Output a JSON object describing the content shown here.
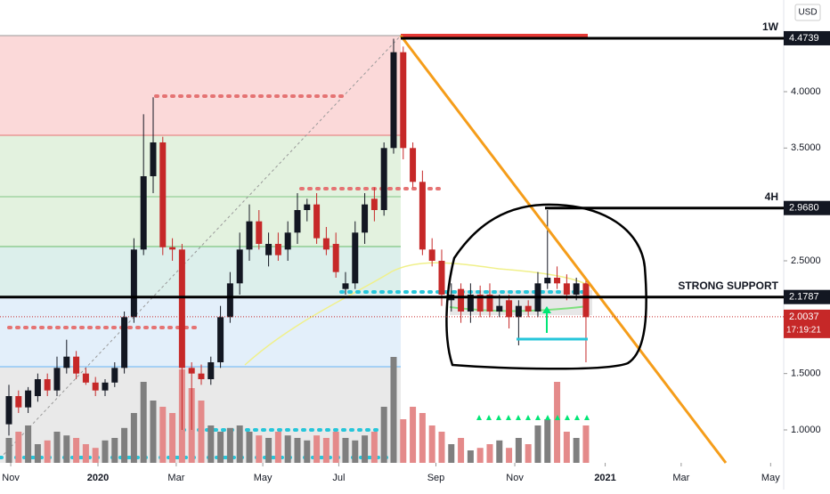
{
  "chart_data": {
    "type": "candlestick",
    "currency": "USD",
    "categories": [
      null,
      null,
      null,
      null,
      null,
      null,
      null,
      null,
      null,
      null,
      null,
      null,
      null,
      null,
      null,
      null,
      null,
      null,
      null,
      null,
      null,
      null,
      null,
      null,
      null,
      null,
      null,
      null,
      null,
      null,
      null,
      null,
      null,
      null,
      null,
      null,
      null,
      null,
      null,
      null,
      null,
      null,
      null,
      null,
      null,
      null,
      null,
      null,
      null,
      null,
      null,
      null,
      null,
      null,
      null,
      null,
      null,
      null,
      null,
      null,
      null
    ],
    "open": [
      1.05,
      1.3,
      1.2,
      1.3,
      1.45,
      1.35,
      1.55,
      1.65,
      1.5,
      1.42,
      1.35,
      1.42,
      1.55,
      2.0,
      2.6,
      3.25,
      3.55,
      2.62,
      2.6,
      1.55,
      1.5,
      1.45,
      1.6,
      2.0,
      2.3,
      2.6,
      2.85,
      2.55,
      2.65,
      2.6,
      2.75,
      2.95,
      3.0,
      2.7,
      2.65,
      2.25,
      2.3,
      2.75,
      3.05,
      2.95,
      3.5,
      4.35,
      3.5,
      3.2,
      2.6,
      2.5,
      2.15,
      2.25,
      2.05,
      2.2,
      2.2,
      2.05,
      2.15,
      2.0,
      2.1,
      2.05,
      2.3,
      2.35,
      2.3,
      2.2,
      2.3
    ],
    "high": [
      1.4,
      1.35,
      1.38,
      1.5,
      1.5,
      1.65,
      1.8,
      1.7,
      1.55,
      1.47,
      1.45,
      1.6,
      2.05,
      2.7,
      3.8,
      3.95,
      3.6,
      2.7,
      2.65,
      1.6,
      1.58,
      1.65,
      2.1,
      2.4,
      2.75,
      3.0,
      2.95,
      2.75,
      2.75,
      2.85,
      3.1,
      3.05,
      3.1,
      2.8,
      2.75,
      2.4,
      2.85,
      3.1,
      3.15,
      3.55,
      4.47,
      4.4,
      3.55,
      3.3,
      2.7,
      2.6,
      2.3,
      2.3,
      2.3,
      2.28,
      2.3,
      2.2,
      2.2,
      2.15,
      2.15,
      2.4,
      2.95,
      2.45,
      2.38,
      2.35,
      2.35
    ],
    "low": [
      0.95,
      1.15,
      1.15,
      1.25,
      1.3,
      1.3,
      1.5,
      1.45,
      1.4,
      1.3,
      1.3,
      1.38,
      1.5,
      1.95,
      2.55,
      3.1,
      2.55,
      2.5,
      1.0,
      1.0,
      1.4,
      1.4,
      1.55,
      1.95,
      2.2,
      2.5,
      2.6,
      2.45,
      2.5,
      2.5,
      2.65,
      2.85,
      2.65,
      2.55,
      2.35,
      2.2,
      2.25,
      2.65,
      2.85,
      2.9,
      3.45,
      3.4,
      3.15,
      2.55,
      2.45,
      2.1,
      2.05,
      1.95,
      1.95,
      2.0,
      2.0,
      2.0,
      1.9,
      1.75,
      2.0,
      2.0,
      2.25,
      2.25,
      2.15,
      2.15,
      1.6
    ],
    "close": [
      1.3,
      1.2,
      1.35,
      1.45,
      1.35,
      1.55,
      1.65,
      1.5,
      1.42,
      1.35,
      1.42,
      1.55,
      2.0,
      2.6,
      3.25,
      3.55,
      2.62,
      2.6,
      1.55,
      1.5,
      1.45,
      1.6,
      2.0,
      2.3,
      2.6,
      2.85,
      2.65,
      2.65,
      2.55,
      2.75,
      2.95,
      3.0,
      2.7,
      2.6,
      2.4,
      2.3,
      2.75,
      3.0,
      2.95,
      3.5,
      4.35,
      3.5,
      3.2,
      2.6,
      2.5,
      2.2,
      2.2,
      2.05,
      2.2,
      2.05,
      2.05,
      2.1,
      2.0,
      2.1,
      2.05,
      2.3,
      2.35,
      2.3,
      2.2,
      2.3,
      2.0
    ],
    "volume": [
      20,
      25,
      30,
      15,
      18,
      25,
      22,
      20,
      15,
      12,
      18,
      20,
      28,
      40,
      65,
      50,
      45,
      40,
      75,
      60,
      50,
      30,
      25,
      28,
      30,
      25,
      22,
      20,
      25,
      22,
      20,
      18,
      22,
      20,
      25,
      20,
      18,
      22,
      25,
      45,
      85,
      35,
      45,
      40,
      30,
      25,
      15,
      20,
      10,
      12,
      15,
      18,
      12,
      20,
      15,
      30,
      35,
      65,
      25,
      20,
      30
    ],
    "up_color": "#131722",
    "down_color": "#c62828",
    "volume_up_color": "#7f7f7f",
    "volume_down_color": "#e48a8a",
    "ylim": [
      0.708,
      4.813
    ],
    "yticks": [
      {
        "value": 4,
        "label": "4.0000"
      },
      {
        "value": 3.5,
        "label": "3.5000"
      },
      {
        "value": 2.5,
        "label": "2.5000"
      },
      {
        "value": 1.5,
        "label": "1.5000"
      },
      {
        "value": 1,
        "label": "1.0000"
      }
    ],
    "xlim": [
      -0.926,
      80.56
    ],
    "xticks": [
      {
        "value": 0.19,
        "label": "Nov"
      },
      {
        "value": 9.26,
        "label": "2020"
      },
      {
        "value": 17.4,
        "label": "Mar"
      },
      {
        "value": 26.4,
        "label": "May"
      },
      {
        "value": 34.3,
        "label": "Jul"
      },
      {
        "value": 44.4,
        "label": "Sep"
      },
      {
        "value": 52.6,
        "label": "Nov"
      },
      {
        "value": 62.0,
        "label": "2021"
      },
      {
        "value": 69.9,
        "label": "Mar"
      },
      {
        "value": 79.2,
        "label": "May"
      }
    ],
    "volume_lim": [
      0,
      100
    ],
    "levels": [
      {
        "value": 4.4739,
        "annotation": "1W"
      },
      {
        "value": {
          "value": 2.968,
          "label": "2.9680"
        },
        "annotation": "4H"
      },
      {
        "value": 2.1787,
        "annotation": "STRONG SUPPORT"
      }
    ],
    "last_price": 2.0037,
    "countdown": "17:19:21"
  }
}
